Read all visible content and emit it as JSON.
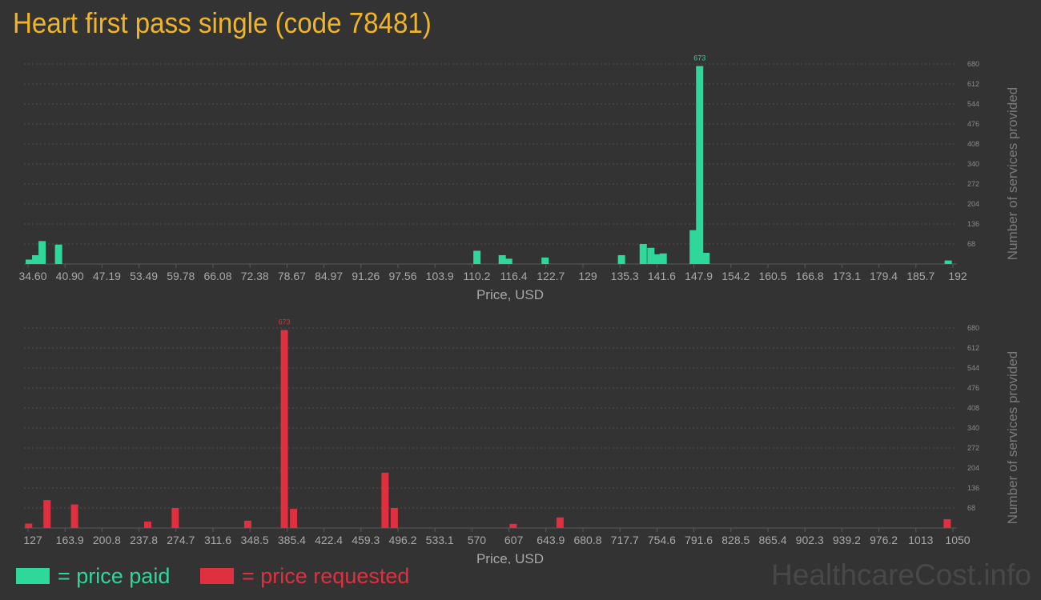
{
  "title": "Heart first pass single (code 78481)",
  "legend": {
    "paid_label": "= price paid",
    "requested_label": "= price requested"
  },
  "watermark": "HealthcareCost.info",
  "colors": {
    "paid": "#2ed89a",
    "requested": "#e0303f",
    "title": "#f0b429",
    "background": "#333333"
  },
  "chart_data": [
    {
      "type": "bar",
      "series": [
        {
          "name": "price paid"
        }
      ],
      "xlabel": "Price, USD",
      "ylabel": "Number of services provided",
      "xlim": [
        34.6,
        192
      ],
      "ylim": [
        0,
        680
      ],
      "x_ticks": [
        "34.60",
        "40.90",
        "47.19",
        "53.49",
        "59.78",
        "66.08",
        "72.38",
        "78.67",
        "84.97",
        "91.26",
        "97.56",
        "103.9",
        "110.2",
        "116.4",
        "122.7",
        "129",
        "135.3",
        "141.6",
        "147.9",
        "154.2",
        "160.5",
        "166.8",
        "173.1",
        "179.4",
        "185.7",
        "192"
      ],
      "y_ticks": [
        68,
        136,
        204,
        272,
        340,
        408,
        476,
        544,
        612,
        680
      ],
      "bars": [
        {
          "x": 34.8,
          "y": 15
        },
        {
          "x": 35.9,
          "y": 30
        },
        {
          "x": 37.0,
          "y": 78
        },
        {
          "x": 39.8,
          "y": 66
        },
        {
          "x": 111.0,
          "y": 45
        },
        {
          "x": 115.3,
          "y": 30
        },
        {
          "x": 116.4,
          "y": 18
        },
        {
          "x": 122.6,
          "y": 22
        },
        {
          "x": 135.6,
          "y": 30
        },
        {
          "x": 139.3,
          "y": 68
        },
        {
          "x": 140.6,
          "y": 55
        },
        {
          "x": 141.6,
          "y": 33
        },
        {
          "x": 142.7,
          "y": 36
        },
        {
          "x": 147.8,
          "y": 115
        },
        {
          "x": 148.9,
          "y": 673,
          "label": "673"
        },
        {
          "x": 150.0,
          "y": 38
        },
        {
          "x": 191.2,
          "y": 12
        }
      ]
    },
    {
      "type": "bar",
      "series": [
        {
          "name": "price requested"
        }
      ],
      "xlabel": "Price, USD",
      "ylabel": "Number of services provided",
      "xlim": [
        127,
        1050
      ],
      "ylim": [
        0,
        680
      ],
      "x_ticks": [
        "127",
        "163.9",
        "200.8",
        "237.8",
        "274.7",
        "311.6",
        "348.5",
        "385.4",
        "422.4",
        "459.3",
        "496.2",
        "533.1",
        "570",
        "607",
        "643.9",
        "680.8",
        "717.7",
        "754.6",
        "791.6",
        "828.5",
        "865.4",
        "902.3",
        "939.2",
        "976.2",
        "1013",
        "1050"
      ],
      "y_ticks": [
        68,
        136,
        204,
        272,
        340,
        408,
        476,
        544,
        612,
        680
      ],
      "bars": [
        {
          "x": 127.6,
          "y": 15
        },
        {
          "x": 146.0,
          "y": 95
        },
        {
          "x": 173.4,
          "y": 80
        },
        {
          "x": 246.5,
          "y": 22
        },
        {
          "x": 273.9,
          "y": 68
        },
        {
          "x": 346.3,
          "y": 25
        },
        {
          "x": 382.8,
          "y": 673,
          "label": "673"
        },
        {
          "x": 392.0,
          "y": 65
        },
        {
          "x": 483.3,
          "y": 188
        },
        {
          "x": 492.5,
          "y": 68
        },
        {
          "x": 611.2,
          "y": 14
        },
        {
          "x": 657.9,
          "y": 36
        },
        {
          "x": 1044.3,
          "y": 30
        }
      ]
    }
  ]
}
